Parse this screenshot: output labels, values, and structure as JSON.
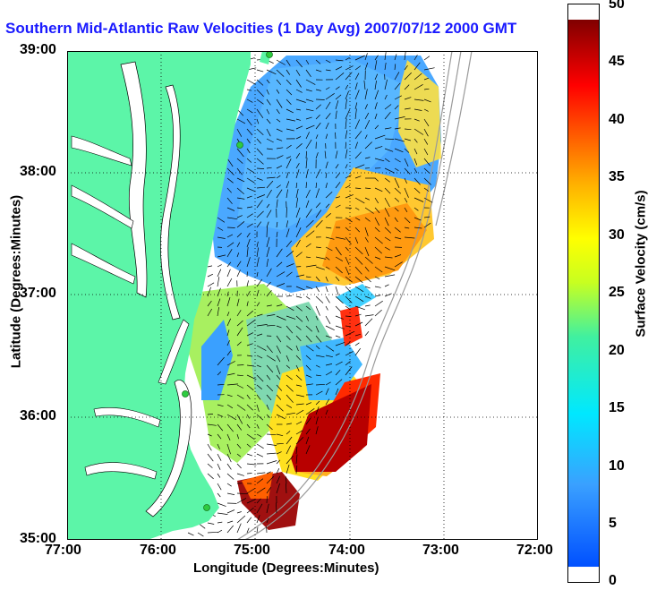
{
  "title": "Southern Mid-Atlantic Raw Velocities (1 Day Avg) 2007/07/12 2000 GMT",
  "axes": {
    "xlabel": "Longitude (Degrees:Minutes)",
    "ylabel": "Latitude (Degrees:Minutes)",
    "x_ticks": [
      "77:00",
      "76:00",
      "75:00",
      "74:00",
      "73:00",
      "72:00"
    ],
    "y_ticks": [
      "39:00",
      "38:00",
      "37:00",
      "36:00",
      "35:00"
    ]
  },
  "colorbar": {
    "label": "Surface Velocity (cm/s)",
    "ticks": [
      "50",
      "45",
      "40",
      "35",
      "30",
      "25",
      "20",
      "15",
      "10",
      "5",
      "0"
    ],
    "range": [
      0,
      50
    ]
  },
  "colors": {
    "title": "#1a1aff",
    "land": "#5cf5a8",
    "water": "#ffffff",
    "grid": "#000000",
    "bathymetry": "#9a9a9a",
    "station": "#2ecc40"
  },
  "map_extent": {
    "lon": [
      -77,
      -72
    ],
    "lat": [
      35,
      39
    ]
  }
}
